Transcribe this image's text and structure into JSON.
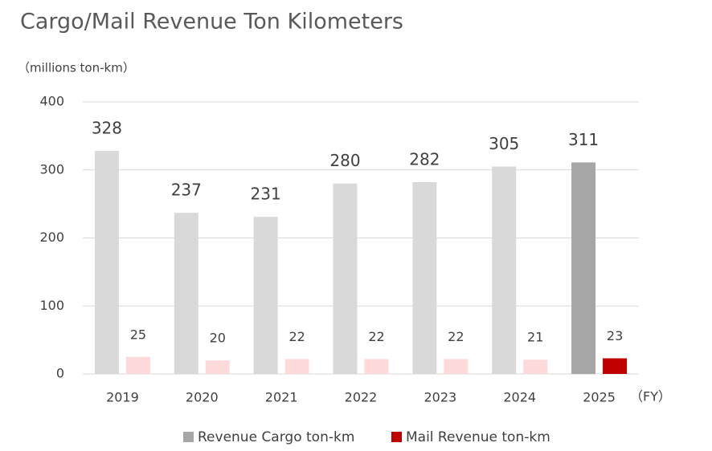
{
  "chart_data": {
    "type": "bar",
    "title": "Cargo/Mail Revenue Ton Kilometers",
    "y_label": "（millions ton-km）",
    "x_label": "（FY）",
    "categories": [
      "2019",
      "2020",
      "2021",
      "2022",
      "2023",
      "2024",
      "2025"
    ],
    "series": [
      {
        "name": "Revenue Cargo ton-km",
        "color": "#a6a6a6",
        "values": [
          328,
          237,
          231,
          280,
          282,
          305,
          311
        ],
        "colors": [
          "#d9d9d9",
          "#d9d9d9",
          "#d9d9d9",
          "#d9d9d9",
          "#d9d9d9",
          "#d9d9d9",
          "#a6a6a6"
        ]
      },
      {
        "name": "Mail Revenue ton-km",
        "color": "#c00000",
        "values": [
          25,
          20,
          22,
          22,
          22,
          21,
          23
        ],
        "colors": [
          "#ffdada",
          "#ffdada",
          "#ffdada",
          "#ffdada",
          "#ffdada",
          "#ffdada",
          "#c00000"
        ]
      }
    ],
    "ylim": [
      0,
      400
    ],
    "yticks": [
      0,
      100,
      200,
      300,
      400
    ],
    "grid": true,
    "legend": "bottom"
  }
}
